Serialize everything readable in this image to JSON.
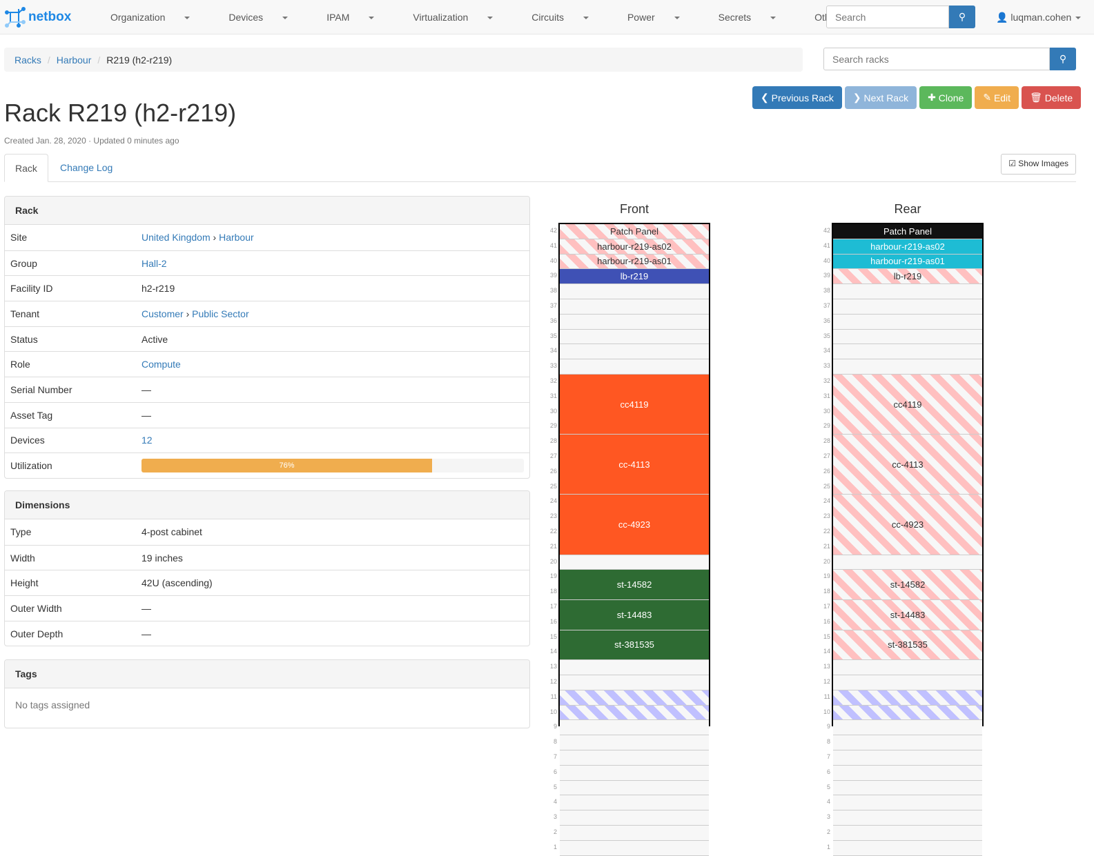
{
  "nav": {
    "brand": "netbox",
    "menu": [
      "Organization",
      "Devices",
      "IPAM",
      "Virtualization",
      "Circuits",
      "Power",
      "Secrets",
      "Other"
    ],
    "search_placeholder": "Search",
    "user": "luqman.cohen"
  },
  "breadcrumb": [
    "Racks",
    "Harbour",
    "R219 (h2-r219)"
  ],
  "rack_search_placeholder": "Search racks",
  "buttons": {
    "previous": "Previous Rack",
    "next": "Next Rack",
    "clone": "Clone",
    "edit": "Edit",
    "delete": "Delete"
  },
  "title": "Rack R219 (h2-r219)",
  "meta": "Created Jan. 28, 2020 · Updated 0 minutes ago",
  "tabs": [
    "Rack",
    "Change Log"
  ],
  "show_images": "Show Images",
  "rack_panel": {
    "heading": "Rack",
    "rows": [
      {
        "k": "Site",
        "v": [
          "United Kingdom",
          "Harbour"
        ],
        "link": true
      },
      {
        "k": "Group",
        "v": [
          "Hall-2"
        ],
        "link": true
      },
      {
        "k": "Facility ID",
        "v": [
          "h2-r219"
        ]
      },
      {
        "k": "Tenant",
        "v": [
          "Customer",
          "Public Sector"
        ],
        "link": true
      },
      {
        "k": "Status",
        "v": [
          "Active"
        ]
      },
      {
        "k": "Role",
        "v": [
          "Compute"
        ],
        "link": true
      },
      {
        "k": "Serial Number",
        "v": [
          "—"
        ]
      },
      {
        "k": "Asset Tag",
        "v": [
          "—"
        ]
      },
      {
        "k": "Devices",
        "v": [
          "12"
        ],
        "link": true
      },
      {
        "k": "Utilization",
        "progress": 76,
        "label": "76%"
      }
    ]
  },
  "dimensions": {
    "heading": "Dimensions",
    "rows": [
      {
        "k": "Type",
        "v": [
          "4-post cabinet"
        ]
      },
      {
        "k": "Width",
        "v": [
          "19 inches"
        ]
      },
      {
        "k": "Height",
        "v": [
          "42U (ascending)"
        ]
      },
      {
        "k": "Outer Width",
        "v": [
          "—"
        ]
      },
      {
        "k": "Outer Depth",
        "v": [
          "—"
        ]
      }
    ]
  },
  "tags": {
    "heading": "Tags",
    "empty": "No tags assigned"
  },
  "elevations": [
    {
      "title": "Front",
      "units": [
        {
          "top": 42,
          "h": 1,
          "name": "Patch Panel",
          "style": "stripe-red"
        },
        {
          "top": 41,
          "h": 1,
          "name": "harbour-r219-as02",
          "style": "stripe-red"
        },
        {
          "top": 40,
          "h": 1,
          "name": "harbour-r219-as01",
          "style": "stripe-red"
        },
        {
          "top": 39,
          "h": 1,
          "name": "lb-r219",
          "color": "#3f51b5"
        },
        {
          "top": 32,
          "h": 4,
          "name": "cc4119",
          "color": "#ff5722"
        },
        {
          "top": 28,
          "h": 4,
          "name": "cc-4113",
          "color": "#ff5722"
        },
        {
          "top": 24,
          "h": 4,
          "name": "cc-4923",
          "color": "#ff5722"
        },
        {
          "top": 19,
          "h": 2,
          "name": "st-14582",
          "color": "#2e6b33"
        },
        {
          "top": 17,
          "h": 2,
          "name": "st-14483",
          "color": "#2e6b33"
        },
        {
          "top": 15,
          "h": 2,
          "name": "st-381535",
          "color": "#2e6b33"
        },
        {
          "top": 11,
          "h": 1,
          "name": "",
          "style": "stripe-blue"
        },
        {
          "top": 10,
          "h": 1,
          "name": "",
          "style": "stripe-blue"
        }
      ]
    },
    {
      "title": "Rear",
      "units": [
        {
          "top": 42,
          "h": 1,
          "name": "Patch Panel",
          "color": "#111111"
        },
        {
          "top": 41,
          "h": 1,
          "name": "harbour-r219-as02",
          "color": "#1ebcd4"
        },
        {
          "top": 40,
          "h": 1,
          "name": "harbour-r219-as01",
          "color": "#1ebcd4"
        },
        {
          "top": 39,
          "h": 1,
          "name": "lb-r219",
          "style": "stripe-red"
        },
        {
          "top": 32,
          "h": 4,
          "name": "cc4119",
          "style": "stripe-red"
        },
        {
          "top": 28,
          "h": 4,
          "name": "cc-4113",
          "style": "stripe-red"
        },
        {
          "top": 24,
          "h": 4,
          "name": "cc-4923",
          "style": "stripe-red"
        },
        {
          "top": 19,
          "h": 2,
          "name": "st-14582",
          "style": "stripe-red"
        },
        {
          "top": 17,
          "h": 2,
          "name": "st-14483",
          "style": "stripe-red"
        },
        {
          "top": 15,
          "h": 2,
          "name": "st-381535",
          "style": "stripe-red"
        },
        {
          "top": 11,
          "h": 1,
          "name": "",
          "style": "stripe-blue"
        },
        {
          "top": 10,
          "h": 1,
          "name": "",
          "style": "stripe-blue"
        }
      ]
    }
  ],
  "colors": {
    "primary": "#337ab7",
    "info": "#8fb5da",
    "success": "#5cb85c",
    "warning": "#f0ad4e",
    "danger": "#d9534f"
  }
}
